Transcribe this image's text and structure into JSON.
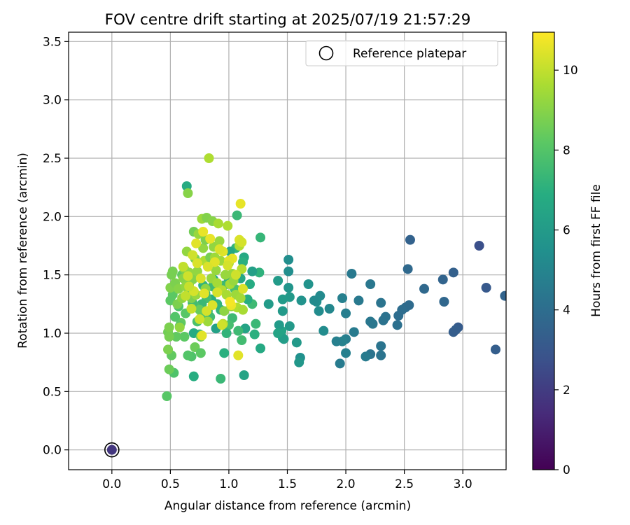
{
  "chart_data": {
    "type": "scatter",
    "title": "FOV centre drift starting at 2025/07/19 21:57:29",
    "xlabel": "Angular distance from reference (arcmin)",
    "ylabel": "Rotation from reference (arcmin)",
    "colorbar_label": "Hours from first FF file",
    "xlim": [
      -0.37,
      3.37
    ],
    "ylim": [
      -0.17,
      3.58
    ],
    "clim": [
      0,
      10.95
    ],
    "colormap": "viridis",
    "x_ticks": [
      0.0,
      0.5,
      1.0,
      1.5,
      2.0,
      2.5,
      3.0
    ],
    "x_tick_labels": [
      "0.0",
      "0.5",
      "1.0",
      "1.5",
      "2.0",
      "2.5",
      "3.0"
    ],
    "y_ticks": [
      0.0,
      0.5,
      1.0,
      1.5,
      2.0,
      2.5,
      3.0,
      3.5
    ],
    "y_tick_labels": [
      "0.0",
      "0.5",
      "1.0",
      "1.5",
      "2.0",
      "2.5",
      "3.0",
      "3.5"
    ],
    "colorbar_ticks": [
      0,
      2,
      4,
      6,
      8,
      10
    ],
    "colorbar_tick_labels": [
      "0",
      "2",
      "4",
      "6",
      "8",
      "10"
    ],
    "grid": true,
    "legend": {
      "placement": "top-right",
      "entries": [
        "Reference platepar"
      ]
    },
    "reference_point": {
      "x": 0.0,
      "y": 0.0,
      "hours": 1.8
    },
    "points": [
      [
        3.36,
        1.32,
        3.6
      ],
      [
        3.28,
        0.86,
        3.3
      ],
      [
        3.2,
        1.39,
        3.1
      ],
      [
        3.14,
        1.75,
        2.7
      ],
      [
        2.96,
        1.05,
        3.2
      ],
      [
        2.94,
        1.03,
        3.3
      ],
      [
        2.92,
        1.01,
        3.3
      ],
      [
        2.92,
        1.52,
        3.4
      ],
      [
        2.84,
        1.27,
        3.7
      ],
      [
        2.83,
        1.46,
        3.6
      ],
      [
        2.67,
        1.38,
        3.8
      ],
      [
        2.55,
        1.8,
        3.5
      ],
      [
        2.54,
        1.24,
        3.9
      ],
      [
        2.53,
        1.55,
        3.8
      ],
      [
        2.51,
        1.22,
        3.9
      ],
      [
        2.48,
        1.2,
        4.0
      ],
      [
        2.45,
        1.15,
        4.0
      ],
      [
        2.44,
        1.07,
        4.1
      ],
      [
        2.34,
        1.14,
        4.2
      ],
      [
        2.32,
        1.11,
        4.2
      ],
      [
        2.3,
        1.26,
        4.3
      ],
      [
        2.3,
        0.89,
        4.3
      ],
      [
        2.3,
        0.81,
        4.3
      ],
      [
        2.23,
        1.08,
        4.4
      ],
      [
        2.21,
        1.42,
        4.4
      ],
      [
        2.21,
        1.1,
        4.4
      ],
      [
        2.21,
        0.82,
        4.3
      ],
      [
        2.17,
        0.8,
        4.6
      ],
      [
        2.11,
        1.28,
        4.5
      ],
      [
        2.07,
        1.01,
        4.6
      ],
      [
        2.05,
        1.51,
        4.5
      ],
      [
        2.0,
        1.17,
        4.7
      ],
      [
        2.0,
        0.95,
        4.7
      ],
      [
        2.0,
        0.83,
        4.8
      ],
      [
        1.97,
        1.3,
        4.8
      ],
      [
        1.97,
        0.93,
        4.9
      ],
      [
        1.95,
        0.74,
        4.6
      ],
      [
        1.92,
        0.93,
        4.8
      ],
      [
        1.86,
        1.21,
        5.1
      ],
      [
        1.81,
        1.02,
        5.3
      ],
      [
        1.78,
        1.32,
        5.2
      ],
      [
        1.77,
        1.19,
        5.3
      ],
      [
        1.75,
        1.27,
        5.4
      ],
      [
        1.73,
        1.28,
        5.2
      ],
      [
        1.68,
        1.42,
        5.6
      ],
      [
        1.62,
        1.28,
        5.6
      ],
      [
        1.61,
        0.79,
        5.5
      ],
      [
        1.6,
        0.75,
        5.8
      ],
      [
        1.58,
        0.92,
        5.9
      ],
      [
        1.52,
        1.06,
        5.9
      ],
      [
        1.52,
        1.31,
        5.9
      ],
      [
        1.51,
        1.39,
        5.7
      ],
      [
        1.51,
        1.63,
        5.4
      ],
      [
        1.51,
        1.53,
        5.4
      ],
      [
        1.46,
        1.19,
        5.9
      ],
      [
        1.46,
        1.29,
        6.0
      ],
      [
        1.46,
        0.96,
        6.2
      ],
      [
        1.45,
        1.02,
        6.4
      ],
      [
        1.47,
        0.95,
        6.1
      ],
      [
        1.43,
        1.07,
        6.0
      ],
      [
        1.42,
        1.0,
        6.4
      ],
      [
        1.42,
        1.45,
        6.0
      ],
      [
        1.34,
        1.25,
        6.0
      ],
      [
        1.27,
        0.87,
        6.7
      ],
      [
        1.27,
        1.82,
        7.3
      ],
      [
        1.26,
        1.52,
        7.1
      ],
      [
        1.23,
        1.08,
        7.4
      ],
      [
        1.22,
        0.99,
        7.0
      ],
      [
        1.2,
        1.25,
        7.5
      ],
      [
        1.2,
        1.53,
        6.2
      ],
      [
        1.18,
        1.42,
        6.8
      ],
      [
        1.16,
        1.29,
        6.9
      ],
      [
        1.14,
        1.04,
        6.4
      ],
      [
        1.13,
        0.64,
        6.4
      ],
      [
        1.13,
        1.65,
        6.7
      ],
      [
        1.12,
        1.61,
        7.0
      ],
      [
        1.11,
        0.94,
        7.6
      ],
      [
        1.1,
        1.47,
        6.6
      ],
      [
        1.08,
        1.02,
        7.5
      ],
      [
        1.07,
        1.37,
        7.1
      ],
      [
        1.07,
        2.01,
        7.4
      ],
      [
        1.06,
        1.73,
        7.2
      ],
      [
        1.05,
        1.38,
        7.8
      ],
      [
        1.03,
        1.13,
        7.5
      ],
      [
        1.03,
        1.5,
        6.6
      ],
      [
        1.01,
        1.7,
        6.6
      ],
      [
        1.0,
        1.46,
        6.6
      ],
      [
        1.0,
        1.07,
        7.7
      ],
      [
        0.98,
        1.0,
        7.2
      ],
      [
        0.96,
        1.41,
        7.4
      ],
      [
        0.96,
        0.83,
        7.0
      ],
      [
        0.93,
        0.61,
        7.4
      ],
      [
        0.93,
        1.2,
        7.2
      ],
      [
        0.92,
        1.37,
        7.5
      ],
      [
        0.9,
        1.25,
        7.2
      ],
      [
        0.89,
        1.04,
        6.3
      ],
      [
        0.87,
        1.46,
        6.9
      ],
      [
        0.86,
        1.4,
        7.5
      ],
      [
        0.85,
        1.29,
        6.9
      ],
      [
        0.84,
        1.14,
        7.6
      ],
      [
        0.82,
        1.19,
        7.2
      ],
      [
        0.81,
        1.3,
        7.7
      ],
      [
        0.8,
        1.34,
        7.3
      ],
      [
        0.78,
        1.41,
        7.2
      ],
      [
        0.77,
        1.25,
        7.4
      ],
      [
        0.76,
        1.13,
        8.0
      ],
      [
        0.75,
        0.99,
        7.5
      ],
      [
        0.73,
        1.1,
        7.8
      ],
      [
        0.71,
        1.23,
        7.8
      ],
      [
        0.7,
        1.0,
        6.8
      ],
      [
        0.7,
        0.63,
        6.9
      ],
      [
        0.69,
        1.26,
        7.6
      ],
      [
        0.68,
        0.8,
        7.9
      ],
      [
        0.67,
        1.36,
        7.6
      ],
      [
        0.66,
        1.42,
        7.9
      ],
      [
        0.65,
        0.81,
        8.0
      ],
      [
        0.64,
        2.26,
        6.8
      ],
      [
        0.63,
        1.17,
        8.1
      ],
      [
        0.62,
        0.97,
        8.2
      ],
      [
        0.6,
        1.5,
        8.3
      ],
      [
        0.59,
        1.09,
        8.3
      ],
      [
        0.58,
        1.06,
        8.0
      ],
      [
        0.57,
        1.23,
        7.9
      ],
      [
        0.55,
        0.97,
        8.3
      ],
      [
        0.54,
        1.14,
        8.0
      ],
      [
        0.53,
        0.66,
        7.9
      ],
      [
        0.52,
        1.33,
        8.2
      ],
      [
        0.51,
        0.81,
        8.3
      ],
      [
        0.5,
        1.28,
        8.2
      ],
      [
        0.49,
        0.69,
        8.5
      ],
      [
        0.47,
        0.46,
        8.1
      ],
      [
        0.48,
        1.01,
        8.6
      ],
      [
        0.48,
        0.86,
        8.8
      ],
      [
        0.49,
        1.05,
        8.8
      ],
      [
        0.49,
        0.97,
        8.7
      ],
      [
        0.5,
        1.39,
        8.9
      ],
      [
        0.51,
        1.5,
        8.7
      ],
      [
        0.52,
        1.53,
        8.7
      ],
      [
        0.54,
        1.43,
        8.8
      ],
      [
        0.56,
        1.25,
        8.8
      ],
      [
        0.57,
        1.38,
        9.0
      ],
      [
        0.58,
        1.05,
        9.2
      ],
      [
        0.6,
        1.3,
        9.1
      ],
      [
        0.61,
        1.47,
        9.0
      ],
      [
        0.62,
        1.55,
        8.9
      ],
      [
        0.63,
        1.4,
        9.2
      ],
      [
        0.64,
        1.7,
        9.2
      ],
      [
        0.65,
        2.2,
        9.0
      ],
      [
        0.66,
        1.52,
        9.2
      ],
      [
        0.67,
        1.47,
        8.9
      ],
      [
        0.68,
        1.3,
        8.8
      ],
      [
        0.69,
        1.46,
        8.9
      ],
      [
        0.7,
        1.87,
        8.6
      ],
      [
        0.71,
        0.88,
        8.5
      ],
      [
        0.71,
        1.64,
        8.8
      ],
      [
        0.72,
        1.33,
        9.3
      ],
      [
        0.73,
        1.53,
        9.2
      ],
      [
        0.74,
        1.85,
        9.3
      ],
      [
        0.75,
        1.2,
        8.4
      ],
      [
        0.76,
        0.83,
        8.2
      ],
      [
        0.76,
        0.97,
        8.6
      ],
      [
        0.77,
        1.98,
        9.4
      ],
      [
        0.78,
        1.73,
        9.2
      ],
      [
        0.79,
        1.62,
        9.7
      ],
      [
        0.8,
        1.8,
        8.8
      ],
      [
        0.8,
        1.38,
        9.1
      ],
      [
        0.81,
        1.99,
        8.9
      ],
      [
        0.82,
        1.1,
        9.4
      ],
      [
        0.83,
        2.5,
        9.7
      ],
      [
        0.84,
        1.65,
        8.7
      ],
      [
        0.85,
        1.47,
        9.3
      ],
      [
        0.86,
        1.96,
        9.0
      ],
      [
        0.87,
        1.74,
        9.2
      ],
      [
        0.88,
        1.65,
        9.4
      ],
      [
        0.89,
        1.54,
        9.3
      ],
      [
        0.9,
        1.43,
        9.5
      ],
      [
        0.91,
        1.94,
        9.6
      ],
      [
        0.92,
        1.79,
        9.3
      ],
      [
        0.93,
        1.62,
        9.4
      ],
      [
        0.94,
        1.37,
        9.8
      ],
      [
        0.95,
        1.08,
        9.9
      ],
      [
        0.96,
        1.19,
        9.1
      ],
      [
        0.97,
        1.5,
        9.3
      ],
      [
        0.98,
        1.33,
        9.6
      ],
      [
        0.99,
        1.92,
        9.7
      ],
      [
        1.0,
        1.6,
        9.5
      ],
      [
        1.01,
        1.42,
        9.6
      ],
      [
        1.02,
        1.23,
        9.4
      ],
      [
        1.03,
        1.51,
        9.3
      ],
      [
        1.04,
        1.45,
        9.3
      ],
      [
        1.06,
        1.33,
        9.4
      ],
      [
        1.07,
        1.22,
        9.7
      ],
      [
        1.09,
        1.75,
        9.8
      ],
      [
        1.1,
        1.3,
        9.5
      ],
      [
        1.11,
        1.55,
        9.8
      ],
      [
        1.12,
        1.2,
        9.6
      ],
      [
        1.06,
        1.5,
        10.2
      ],
      [
        1.08,
        0.81,
        10.5
      ],
      [
        1.09,
        1.8,
        10.4
      ],
      [
        1.1,
        2.11,
        10.6
      ],
      [
        1.11,
        1.78,
        10.3
      ],
      [
        1.12,
        1.38,
        10.4
      ],
      [
        1.03,
        1.64,
        10.6
      ],
      [
        1.02,
        1.24,
        10.7
      ],
      [
        1.01,
        1.27,
        10.8
      ],
      [
        1.0,
        1.62,
        10.5
      ],
      [
        0.99,
        1.58,
        10.3
      ],
      [
        0.95,
        1.7,
        10.5
      ],
      [
        0.94,
        1.07,
        10.2
      ],
      [
        0.92,
        1.72,
        10.4
      ],
      [
        0.9,
        1.35,
        10.3
      ],
      [
        0.88,
        1.61,
        10.5
      ],
      [
        0.86,
        1.24,
        10.4
      ],
      [
        0.84,
        1.81,
        10.6
      ],
      [
        0.82,
        1.57,
        10.4
      ],
      [
        0.81,
        1.19,
        10.3
      ],
      [
        0.79,
        1.34,
        10.5
      ],
      [
        0.78,
        1.87,
        10.6
      ],
      [
        0.77,
        0.98,
        10.5
      ],
      [
        0.76,
        1.47,
        10.4
      ],
      [
        0.75,
        1.12,
        10.2
      ],
      [
        0.73,
        1.6,
        10.4
      ],
      [
        0.72,
        1.77,
        10.5
      ],
      [
        0.7,
        1.36,
        10.3
      ],
      [
        0.69,
        1.67,
        10.2
      ],
      [
        0.68,
        1.21,
        10.1
      ],
      [
        0.66,
        1.4,
        10.1
      ],
      [
        0.65,
        1.49,
        10.2
      ],
      [
        0.63,
        1.32,
        10.0
      ],
      [
        0.61,
        1.57,
        10.0
      ]
    ]
  }
}
